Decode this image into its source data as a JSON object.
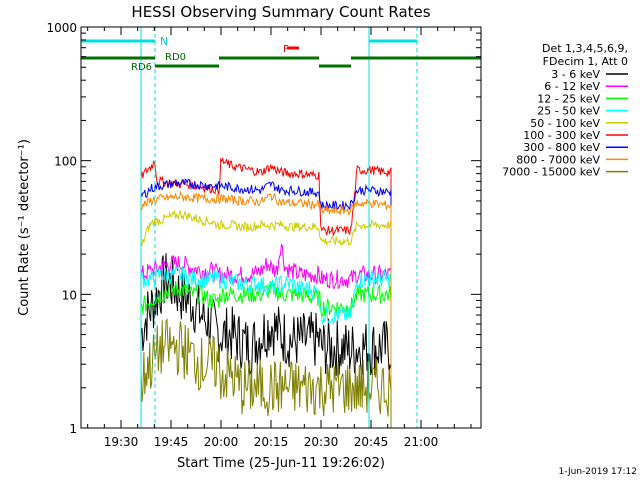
{
  "chart_data": {
    "type": "line",
    "title": "HESSI Observing Summary Count Rates",
    "xlabel": "Start Time (25-Jun-11 19:26:02)",
    "ylabel": "Count Rate (s⁻¹ detector⁻¹)",
    "yscale": "log",
    "ylim": [
      1,
      1000
    ],
    "xlim_minutes": [
      19.3,
      21.3
    ],
    "x_ticks": [
      {
        "t": 19.5,
        "label": "19:30"
      },
      {
        "t": 19.75,
        "label": "19:45"
      },
      {
        "t": 20.0,
        "label": "20:00"
      },
      {
        "t": 20.25,
        "label": "20:15"
      },
      {
        "t": 20.5,
        "label": "20:30"
      },
      {
        "t": 20.75,
        "label": "20:45"
      },
      {
        "t": 21.0,
        "label": "21:00"
      }
    ],
    "y_ticks": [
      {
        "v": 1,
        "label": "1"
      },
      {
        "v": 10,
        "label": "10"
      },
      {
        "v": 100,
        "label": "100"
      },
      {
        "v": 1000,
        "label": "1000"
      }
    ],
    "legend_header": [
      "Det 1,3,4,5,6,9,",
      "FDecim 1, Att 0"
    ],
    "series": [
      {
        "name": "3 - 6 keV",
        "color": "#000000",
        "values": [
          [
            19.6,
            5
          ],
          [
            19.63,
            7
          ],
          [
            19.67,
            9
          ],
          [
            19.72,
            13
          ],
          [
            19.75,
            12
          ],
          [
            19.8,
            10
          ],
          [
            19.85,
            9
          ],
          [
            19.9,
            7
          ],
          [
            19.95,
            6
          ],
          [
            19.99,
            5
          ],
          [
            20.0,
            5
          ],
          [
            20.05,
            5
          ],
          [
            20.1,
            4.5
          ],
          [
            20.15,
            4
          ],
          [
            20.2,
            5
          ],
          [
            20.25,
            6
          ],
          [
            20.3,
            5
          ],
          [
            20.35,
            4.5
          ],
          [
            20.4,
            4.5
          ],
          [
            20.45,
            4.5
          ],
          [
            20.49,
            4.5
          ],
          [
            20.5,
            4
          ],
          [
            20.55,
            4
          ],
          [
            20.6,
            4
          ],
          [
            20.65,
            3.8
          ],
          [
            20.68,
            4
          ],
          [
            20.7,
            4
          ],
          [
            20.75,
            4
          ],
          [
            20.8,
            4
          ],
          [
            20.85,
            4
          ]
        ]
      },
      {
        "name": "6 - 12 keV",
        "color": "#ff00ff",
        "values": [
          [
            19.6,
            14
          ],
          [
            19.65,
            15
          ],
          [
            19.7,
            16
          ],
          [
            19.75,
            17
          ],
          [
            19.8,
            17
          ],
          [
            19.85,
            16
          ],
          [
            19.9,
            15
          ],
          [
            19.95,
            15
          ],
          [
            19.99,
            14
          ],
          [
            20.0,
            14
          ],
          [
            20.05,
            14
          ],
          [
            20.1,
            14
          ],
          [
            20.15,
            14
          ],
          [
            20.2,
            15
          ],
          [
            20.23,
            17
          ],
          [
            20.25,
            16
          ],
          [
            20.28,
            15
          ],
          [
            20.3,
            25
          ],
          [
            20.32,
            16
          ],
          [
            20.35,
            15
          ],
          [
            20.4,
            14
          ],
          [
            20.45,
            14
          ],
          [
            20.49,
            14
          ],
          [
            20.5,
            13
          ],
          [
            20.55,
            13
          ],
          [
            20.6,
            13
          ],
          [
            20.65,
            13
          ],
          [
            20.68,
            14
          ],
          [
            20.7,
            14
          ],
          [
            20.75,
            14
          ],
          [
            20.8,
            14
          ],
          [
            20.85,
            14
          ]
        ]
      },
      {
        "name": "12 - 25 keV",
        "color": "#00ff00",
        "values": [
          [
            19.6,
            8
          ],
          [
            19.65,
            9
          ],
          [
            19.7,
            10
          ],
          [
            19.75,
            11
          ],
          [
            19.8,
            11
          ],
          [
            19.85,
            10
          ],
          [
            19.9,
            10
          ],
          [
            19.95,
            9
          ],
          [
            19.99,
            9
          ],
          [
            20.0,
            10
          ],
          [
            20.05,
            10
          ],
          [
            20.1,
            10
          ],
          [
            20.15,
            10
          ],
          [
            20.2,
            10
          ],
          [
            20.25,
            11
          ],
          [
            20.3,
            10
          ],
          [
            20.35,
            10
          ],
          [
            20.4,
            10
          ],
          [
            20.45,
            9.5
          ],
          [
            20.49,
            9.5
          ],
          [
            20.5,
            8
          ],
          [
            20.55,
            8
          ],
          [
            20.6,
            8
          ],
          [
            20.65,
            8
          ],
          [
            20.68,
            10
          ],
          [
            20.7,
            10
          ],
          [
            20.75,
            10
          ],
          [
            20.8,
            10
          ],
          [
            20.85,
            10
          ]
        ]
      },
      {
        "name": "25 - 50 keV",
        "color": "#00ffff",
        "values": [
          [
            19.6,
            13
          ],
          [
            19.65,
            13
          ],
          [
            19.7,
            14
          ],
          [
            19.75,
            14
          ],
          [
            19.8,
            14
          ],
          [
            19.85,
            13
          ],
          [
            19.9,
            13
          ],
          [
            19.95,
            13
          ],
          [
            19.99,
            13
          ],
          [
            20.0,
            13
          ],
          [
            20.05,
            12.5
          ],
          [
            20.1,
            12
          ],
          [
            20.15,
            12
          ],
          [
            20.2,
            12
          ],
          [
            20.25,
            11
          ],
          [
            20.3,
            12
          ],
          [
            20.35,
            12
          ],
          [
            20.4,
            11
          ],
          [
            20.45,
            11
          ],
          [
            20.49,
            10
          ],
          [
            20.5,
            7
          ],
          [
            20.55,
            7
          ],
          [
            20.6,
            7
          ],
          [
            20.65,
            7
          ],
          [
            20.68,
            13
          ],
          [
            20.7,
            13
          ],
          [
            20.75,
            13
          ],
          [
            20.8,
            13
          ],
          [
            20.85,
            13
          ]
        ]
      },
      {
        "name": "50 - 100 keV",
        "color": "#cccc00",
        "values": [
          [
            19.6,
            22
          ],
          [
            19.63,
            30
          ],
          [
            19.65,
            34
          ],
          [
            19.7,
            36
          ],
          [
            19.75,
            38
          ],
          [
            19.8,
            40
          ],
          [
            19.85,
            38
          ],
          [
            19.9,
            36
          ],
          [
            19.95,
            35
          ],
          [
            19.99,
            33
          ],
          [
            20.0,
            33
          ],
          [
            20.05,
            33
          ],
          [
            20.1,
            32
          ],
          [
            20.15,
            32
          ],
          [
            20.2,
            33
          ],
          [
            20.25,
            33
          ],
          [
            20.3,
            33
          ],
          [
            20.35,
            32
          ],
          [
            20.4,
            32
          ],
          [
            20.45,
            32
          ],
          [
            20.49,
            32
          ],
          [
            20.5,
            25
          ],
          [
            20.55,
            25
          ],
          [
            20.6,
            25
          ],
          [
            20.65,
            25
          ],
          [
            20.68,
            33
          ],
          [
            20.7,
            33
          ],
          [
            20.75,
            33
          ],
          [
            20.8,
            33
          ],
          [
            20.85,
            33
          ]
        ]
      },
      {
        "name": "100 - 300 keV",
        "color": "#ff0000",
        "values": [
          [
            19.6,
            75
          ],
          [
            19.63,
            85
          ],
          [
            19.65,
            90
          ],
          [
            19.67,
            100
          ],
          [
            19.68,
            70
          ],
          [
            19.7,
            70
          ],
          [
            19.75,
            68
          ],
          [
            19.8,
            67
          ],
          [
            19.85,
            66
          ],
          [
            19.9,
            64
          ],
          [
            19.95,
            62
          ],
          [
            19.99,
            60
          ],
          [
            20.0,
            100
          ],
          [
            20.05,
            92
          ],
          [
            20.1,
            88
          ],
          [
            20.15,
            85
          ],
          [
            20.2,
            82
          ],
          [
            20.25,
            90
          ],
          [
            20.3,
            82
          ],
          [
            20.35,
            80
          ],
          [
            20.4,
            80
          ],
          [
            20.45,
            78
          ],
          [
            20.49,
            78
          ],
          [
            20.5,
            30
          ],
          [
            20.55,
            30
          ],
          [
            20.6,
            30
          ],
          [
            20.65,
            30
          ],
          [
            20.68,
            85
          ],
          [
            20.7,
            85
          ],
          [
            20.75,
            85
          ],
          [
            20.8,
            83
          ],
          [
            20.85,
            82
          ]
        ]
      },
      {
        "name": "300 - 800 keV",
        "color": "#0000ff",
        "values": [
          [
            19.6,
            55
          ],
          [
            19.63,
            58
          ],
          [
            19.65,
            62
          ],
          [
            19.7,
            65
          ],
          [
            19.75,
            67
          ],
          [
            19.8,
            68
          ],
          [
            19.85,
            67
          ],
          [
            19.9,
            66
          ],
          [
            19.95,
            65
          ],
          [
            19.99,
            65
          ],
          [
            20.0,
            65
          ],
          [
            20.05,
            63
          ],
          [
            20.1,
            62
          ],
          [
            20.15,
            61
          ],
          [
            20.2,
            60
          ],
          [
            20.25,
            67
          ],
          [
            20.3,
            60
          ],
          [
            20.35,
            60
          ],
          [
            20.4,
            59
          ],
          [
            20.45,
            58
          ],
          [
            20.49,
            58
          ],
          [
            20.5,
            46
          ],
          [
            20.55,
            46
          ],
          [
            20.6,
            46
          ],
          [
            20.65,
            47
          ],
          [
            20.68,
            60
          ],
          [
            20.7,
            60
          ],
          [
            20.75,
            60
          ],
          [
            20.8,
            59
          ],
          [
            20.85,
            58
          ]
        ]
      },
      {
        "name": "800 - 7000 keV",
        "color": "#ff8800",
        "values": [
          [
            19.6,
            46
          ],
          [
            19.63,
            48
          ],
          [
            19.65,
            50
          ],
          [
            19.7,
            52
          ],
          [
            19.75,
            53
          ],
          [
            19.8,
            54
          ],
          [
            19.85,
            53
          ],
          [
            19.9,
            52
          ],
          [
            19.95,
            52
          ],
          [
            19.99,
            52
          ],
          [
            20.0,
            52
          ],
          [
            20.05,
            51
          ],
          [
            20.1,
            50
          ],
          [
            20.15,
            50
          ],
          [
            20.2,
            49
          ],
          [
            20.25,
            55
          ],
          [
            20.3,
            49
          ],
          [
            20.35,
            48
          ],
          [
            20.4,
            48
          ],
          [
            20.45,
            47
          ],
          [
            20.49,
            47
          ],
          [
            20.5,
            42
          ],
          [
            20.55,
            42
          ],
          [
            20.6,
            42
          ],
          [
            20.65,
            43
          ],
          [
            20.68,
            48
          ],
          [
            20.7,
            48
          ],
          [
            20.75,
            48
          ],
          [
            20.8,
            47
          ],
          [
            20.85,
            46
          ]
        ]
      },
      {
        "name": "7000 - 15000 keV",
        "color": "#808000",
        "values": [
          [
            19.6,
            2
          ],
          [
            19.63,
            3
          ],
          [
            19.65,
            3
          ],
          [
            19.7,
            4
          ],
          [
            19.75,
            4
          ],
          [
            19.8,
            4
          ],
          [
            19.85,
            3.5
          ],
          [
            19.9,
            3
          ],
          [
            19.95,
            3
          ],
          [
            19.99,
            3
          ],
          [
            20.0,
            2.5
          ],
          [
            20.05,
            2.5
          ],
          [
            20.1,
            2
          ],
          [
            20.15,
            2
          ],
          [
            20.2,
            2
          ],
          [
            20.25,
            2
          ],
          [
            20.3,
            2
          ],
          [
            20.35,
            2
          ],
          [
            20.4,
            2
          ],
          [
            20.45,
            2
          ],
          [
            20.49,
            2
          ],
          [
            20.5,
            2
          ],
          [
            20.55,
            2
          ],
          [
            20.6,
            2
          ],
          [
            20.65,
            2
          ],
          [
            20.68,
            2
          ],
          [
            20.7,
            2
          ],
          [
            20.75,
            2
          ],
          [
            20.8,
            2
          ],
          [
            20.85,
            2
          ]
        ]
      }
    ],
    "data_window": [
      19.6,
      20.85
    ],
    "cyan_lines": [
      19.6,
      19.67,
      20.74,
      20.98
    ],
    "cyan_bars": [
      [
        19.3,
        19.67
      ],
      [
        20.74,
        20.98
      ]
    ],
    "n_label": "N",
    "n_label_t": 19.68,
    "green_segments": [
      {
        "t0": 19.3,
        "t1": 19.67,
        "level": "upper"
      },
      {
        "t0": 19.67,
        "t1": 19.99,
        "level": "lower"
      },
      {
        "t0": 19.99,
        "t1": 20.49,
        "level": "upper"
      },
      {
        "t0": 20.49,
        "t1": 20.65,
        "level": "lower"
      },
      {
        "t0": 20.65,
        "t1": 21.3,
        "level": "upper"
      }
    ],
    "annotations": [
      {
        "text": "RD6",
        "t": 19.55,
        "color": "#006600"
      },
      {
        "text": "RD0",
        "t": 19.72,
        "color": "#006600"
      },
      {
        "text": "F",
        "t": 20.31,
        "color": "#cc0000"
      }
    ],
    "flare_bar": [
      20.33,
      20.39
    ],
    "footer_date": "1-Jun-2019 17:12"
  }
}
